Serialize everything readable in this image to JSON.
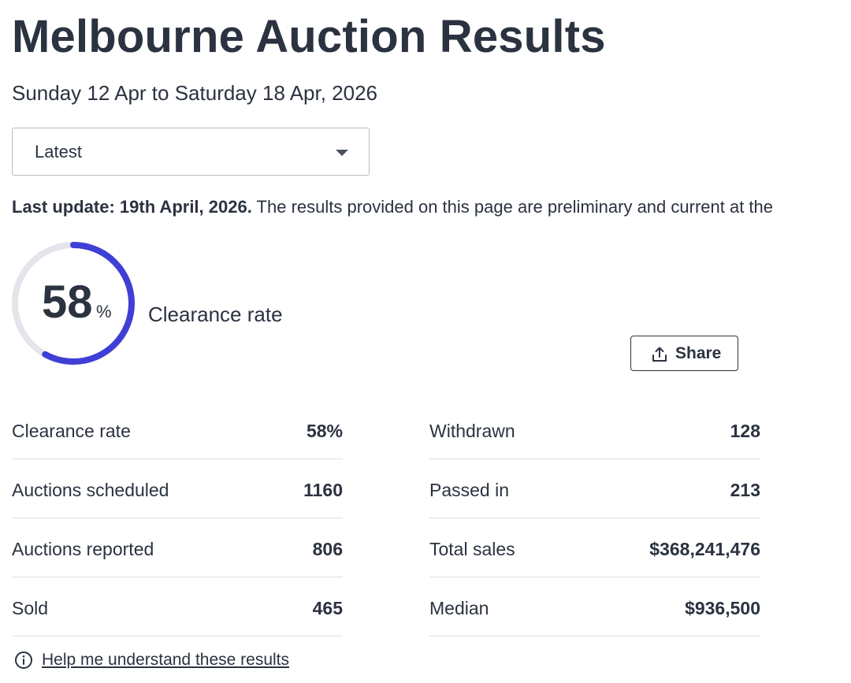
{
  "header": {
    "title": "Melbourne Auction Results",
    "date_range": "Sunday 12 Apr to Saturday 18 Apr, 2026"
  },
  "period_select": {
    "value": "Latest"
  },
  "update": {
    "label": "Last update: 19th April, 2026.",
    "text": " The results provided on this page are preliminary and current at the"
  },
  "clearance": {
    "value": "58",
    "unit": "%",
    "fraction": 0.58,
    "label": "Clearance rate",
    "track_color": "#e3e5ea",
    "progress_color": "#3f3fd6"
  },
  "share": {
    "label": "Share"
  },
  "stats_left": [
    {
      "label": "Clearance rate",
      "value": "58%"
    },
    {
      "label": "Auctions scheduled",
      "value": "1160"
    },
    {
      "label": "Auctions reported",
      "value": "806"
    },
    {
      "label": "Sold",
      "value": "465"
    }
  ],
  "stats_right": [
    {
      "label": "Withdrawn",
      "value": "128"
    },
    {
      "label": "Passed in",
      "value": "213"
    },
    {
      "label": "Total sales",
      "value": "$368,241,476"
    },
    {
      "label": "Median",
      "value": "$936,500"
    }
  ],
  "help": {
    "link_text": "Help me understand these results"
  }
}
